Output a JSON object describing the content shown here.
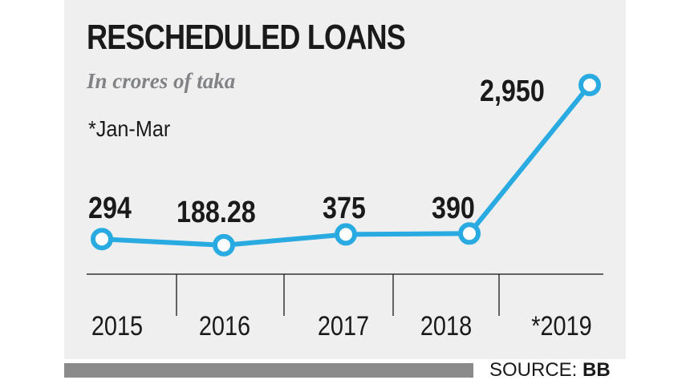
{
  "chart_data": {
    "type": "line",
    "title": "RESCHEDULED LOANS",
    "subtitle": "In crores of taka",
    "note": "*Jan-Mar",
    "categories": [
      "2015",
      "2016",
      "2017",
      "2018",
      "*2019"
    ],
    "series": [
      {
        "values": [
          294,
          188.28,
          375,
          390,
          2950
        ],
        "labels": [
          "294",
          "188.28",
          "375",
          "390",
          "2,950"
        ]
      }
    ],
    "line_color": "#29abe2",
    "grid": false
  },
  "source": {
    "label": "SOURCE:",
    "value": "BB"
  }
}
